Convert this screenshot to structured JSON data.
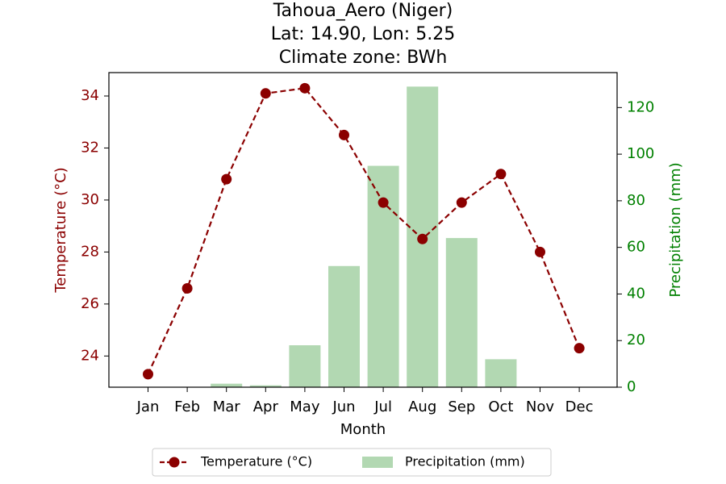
{
  "chart_data": {
    "type": "bar+line",
    "title_lines": [
      "Tahoua_Aero (Niger)",
      "Lat: 14.90, Lon: 5.25",
      "Climate zone: BWh"
    ],
    "xlabel": "Month",
    "ylabel_left": "Temperature (°C)",
    "ylabel_right": "Precipitation (mm)",
    "categories": [
      "Jan",
      "Feb",
      "Mar",
      "Apr",
      "May",
      "Jun",
      "Jul",
      "Aug",
      "Sep",
      "Oct",
      "Nov",
      "Dec"
    ],
    "left_axis": {
      "ylim": [
        22.8,
        34.9
      ],
      "ticks": [
        24,
        26,
        28,
        30,
        32,
        34
      ]
    },
    "right_axis": {
      "ylim": [
        0,
        135
      ],
      "ticks": [
        0,
        20,
        40,
        60,
        80,
        100,
        120
      ]
    },
    "series": [
      {
        "name": "Temperature (°C)",
        "kind": "line",
        "axis": "left",
        "color": "#8b0000",
        "style": "dashed",
        "marker": "circle",
        "values": [
          23.3,
          26.6,
          30.8,
          34.1,
          34.3,
          32.5,
          29.9,
          28.5,
          29.9,
          31.0,
          28.0,
          24.3
        ]
      },
      {
        "name": "Precipitation (mm)",
        "kind": "bar",
        "axis": "right",
        "color": "#b2d8b2",
        "values": [
          0,
          0,
          1.5,
          0.8,
          18,
          52,
          95,
          129,
          64,
          12,
          0,
          0
        ]
      }
    ],
    "grid": false,
    "legend_position": "bottom-center",
    "colors": {
      "left_axis": "#8b0000",
      "right_axis": "#008000"
    }
  }
}
